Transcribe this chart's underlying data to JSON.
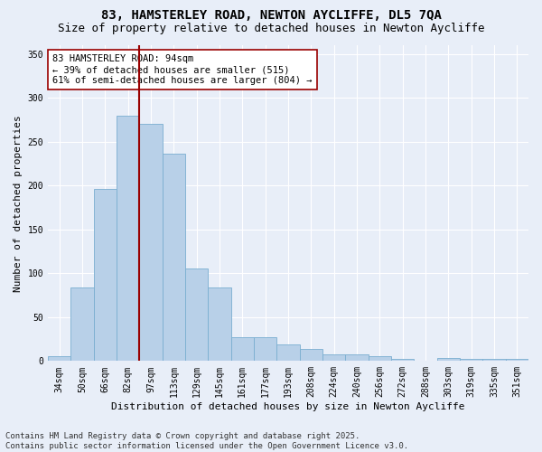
{
  "title": "83, HAMSTERLEY ROAD, NEWTON AYCLIFFE, DL5 7QA",
  "subtitle": "Size of property relative to detached houses in Newton Aycliffe",
  "xlabel": "Distribution of detached houses by size in Newton Aycliffe",
  "ylabel": "Number of detached properties",
  "categories": [
    "34sqm",
    "50sqm",
    "66sqm",
    "82sqm",
    "97sqm",
    "113sqm",
    "129sqm",
    "145sqm",
    "161sqm",
    "177sqm",
    "193sqm",
    "208sqm",
    "224sqm",
    "240sqm",
    "256sqm",
    "272sqm",
    "288sqm",
    "303sqm",
    "319sqm",
    "335sqm",
    "351sqm"
  ],
  "values": [
    6,
    84,
    196,
    280,
    270,
    236,
    105,
    84,
    27,
    27,
    19,
    14,
    8,
    8,
    5,
    2,
    0,
    3,
    2,
    2,
    2
  ],
  "bar_color": "#b8d0e8",
  "bar_edge_color": "#7aaed0",
  "vline_color": "#990000",
  "vline_x_index": 3.5,
  "annotation_text": "83 HAMSTERLEY ROAD: 94sqm\n← 39% of detached houses are smaller (515)\n61% of semi-detached houses are larger (804) →",
  "annotation_box_color": "#ffffff",
  "annotation_box_edge_color": "#990000",
  "ylim": [
    0,
    360
  ],
  "yticks": [
    0,
    50,
    100,
    150,
    200,
    250,
    300,
    350
  ],
  "footnote": "Contains HM Land Registry data © Crown copyright and database right 2025.\nContains public sector information licensed under the Open Government Licence v3.0.",
  "background_color": "#e8eef8",
  "grid_color": "#ffffff",
  "title_fontsize": 10,
  "subtitle_fontsize": 9,
  "label_fontsize": 8,
  "tick_fontsize": 7,
  "annotation_fontsize": 7.5,
  "footnote_fontsize": 6.5
}
